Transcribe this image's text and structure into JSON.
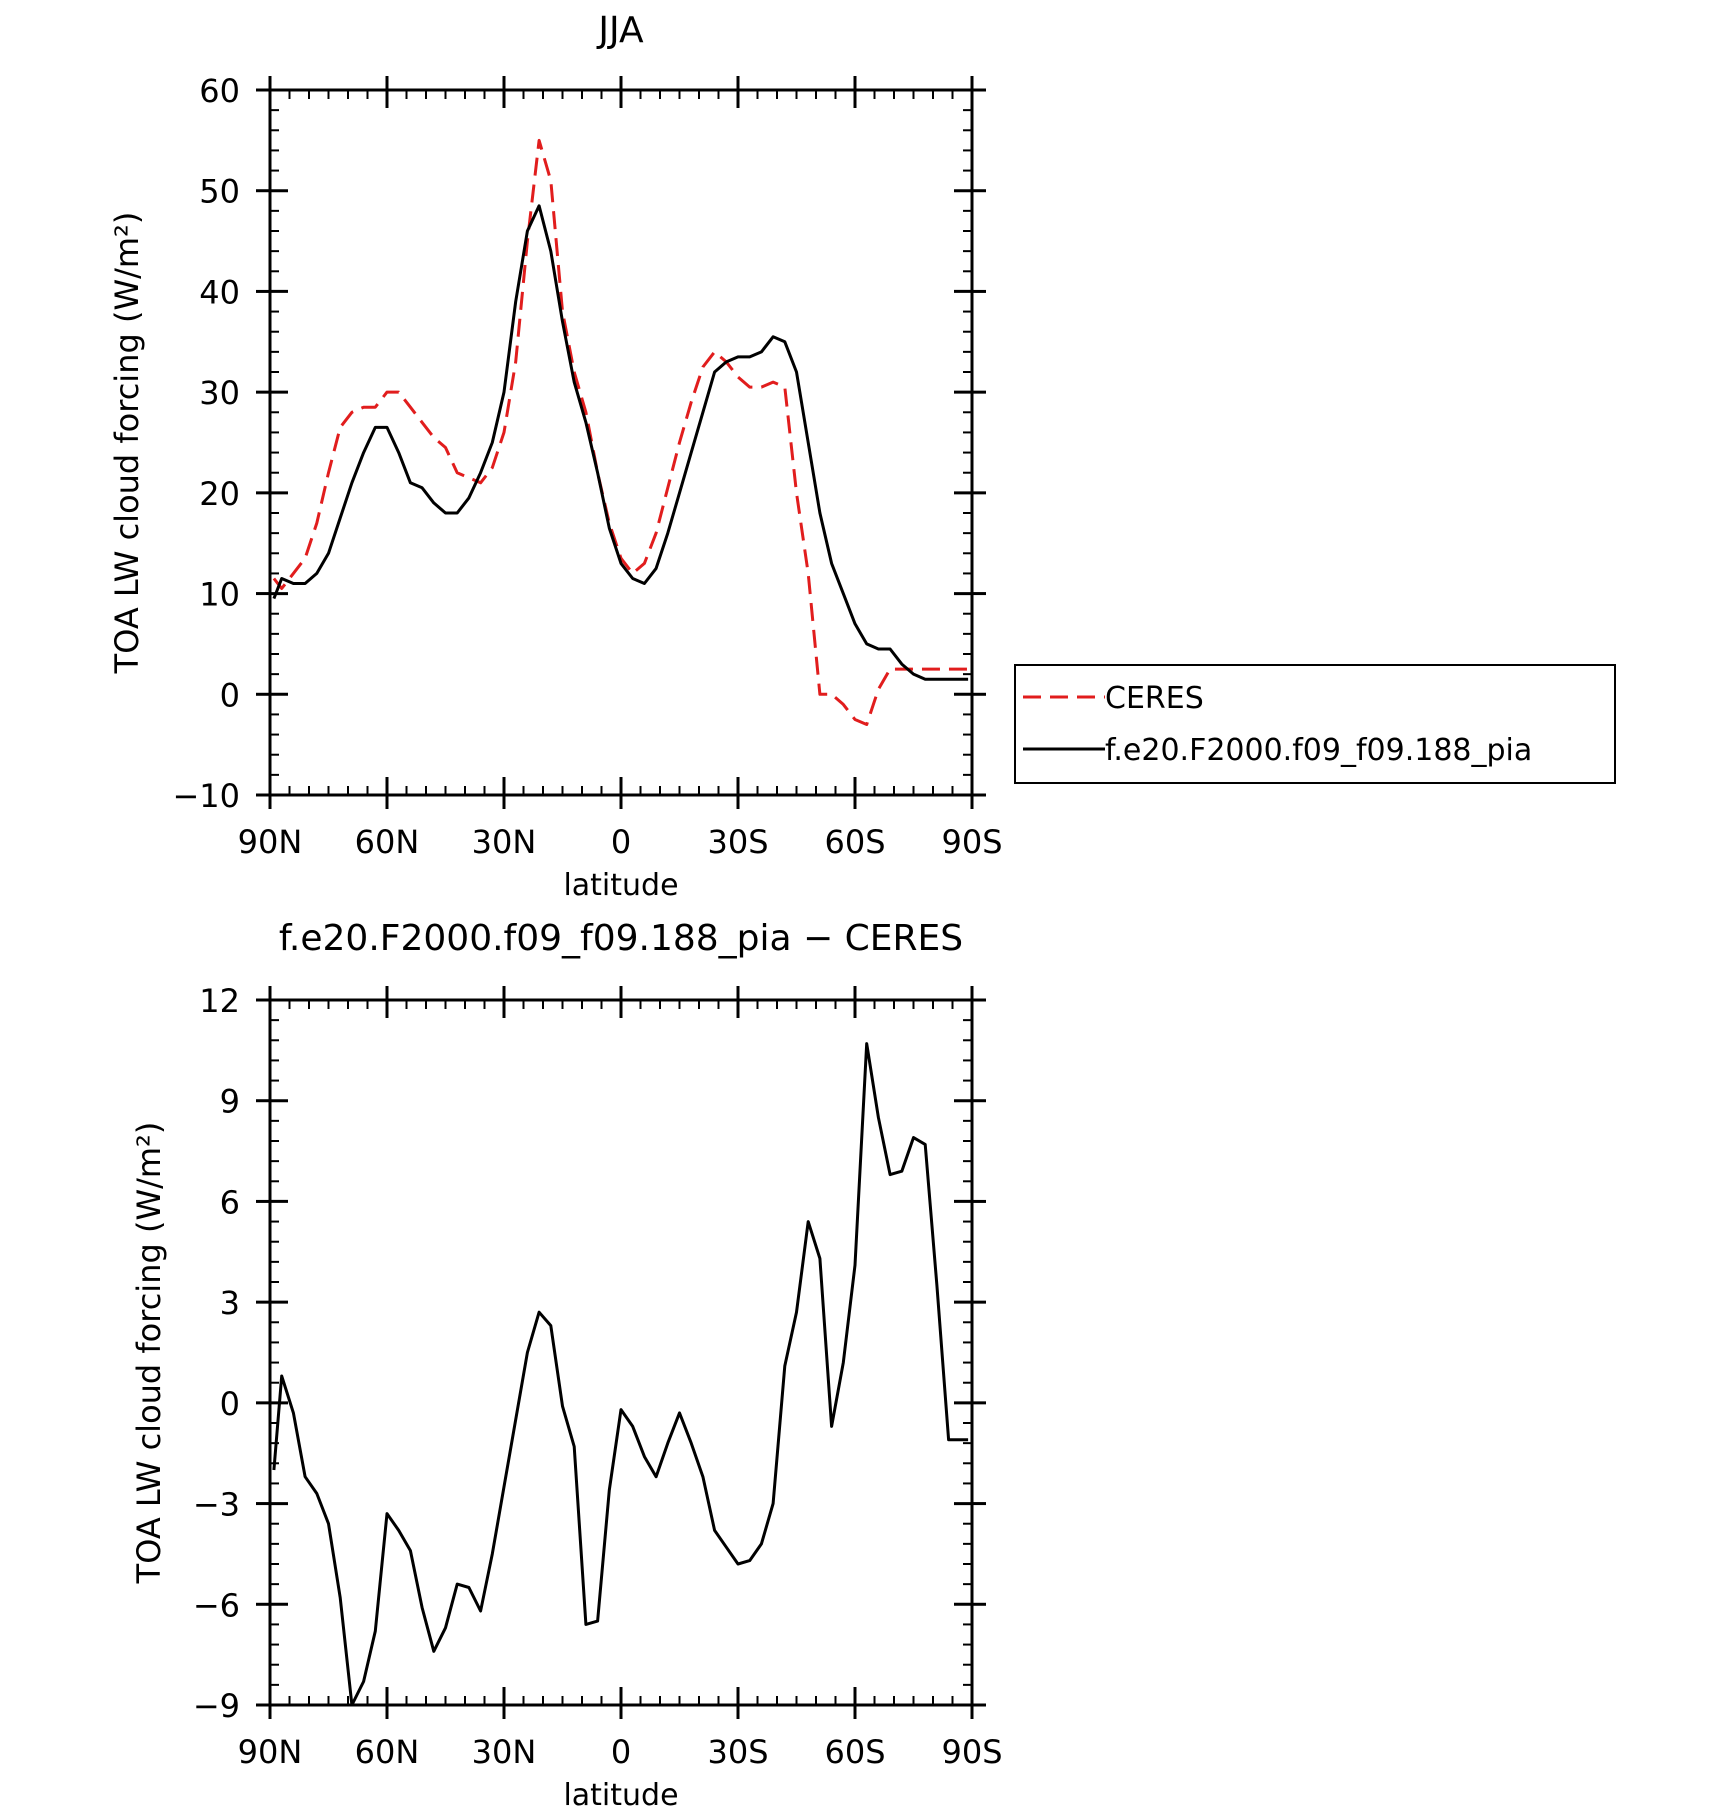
{
  "chart_data": [
    {
      "type": "line",
      "title": "JJA",
      "xlabel": "latitude",
      "ylabel": "TOA LW cloud forcing (W/m²)",
      "xlim": [
        90,
        -90
      ],
      "ylim": [
        -10,
        60
      ],
      "x_ticks": [
        90,
        60,
        30,
        0,
        -30,
        -60,
        -90
      ],
      "x_tick_labels": [
        "90N",
        "60N",
        "30N",
        "0",
        "30S",
        "60S",
        "90S"
      ],
      "y_ticks": [
        -10,
        0,
        10,
        20,
        30,
        40,
        50,
        60
      ],
      "y_tick_labels": [
        "−10",
        "0",
        "10",
        "20",
        "30",
        "40",
        "50",
        "60"
      ],
      "legend": {
        "placement": "outside-right"
      },
      "series": [
        {
          "name": "CERES",
          "color": "#e11d1d",
          "dash": "dashed",
          "x": [
            89,
            87,
            84,
            81,
            78,
            75,
            72,
            69,
            66,
            63,
            60,
            57,
            54,
            51,
            48,
            45,
            42,
            39,
            36,
            33,
            30,
            27,
            24,
            21,
            18,
            15,
            12,
            9,
            6,
            3,
            0,
            -3,
            -6,
            -9,
            -12,
            -15,
            -18,
            -21,
            -24,
            -27,
            -30,
            -33,
            -36,
            -39,
            -42,
            -45,
            -48,
            -51,
            -54,
            -57,
            -60,
            -63,
            -66,
            -69,
            -72,
            -75,
            -78,
            -81,
            -84,
            -87,
            -89
          ],
          "y": [
            11.5,
            10.5,
            12,
            13.5,
            17,
            22,
            26.5,
            28,
            28.5,
            28.5,
            30,
            30,
            28.5,
            27,
            25.5,
            24.5,
            22,
            21.5,
            21,
            22.5,
            26,
            33,
            45,
            55,
            51,
            38,
            32,
            28,
            22,
            17,
            13.5,
            12,
            13,
            16,
            20.5,
            25,
            29,
            32.5,
            34,
            33,
            31.5,
            30.5,
            30.5,
            31,
            30.5,
            20,
            12,
            0,
            0,
            -1,
            -2.5,
            -3,
            0.5,
            2.5,
            2.5,
            2.5,
            2.5,
            2.5,
            2.5,
            2.5,
            2.5
          ]
        },
        {
          "name": "f.e20.F2000.f09_f09.188_pia",
          "color": "#000000",
          "dash": "solid",
          "x": [
            89,
            87,
            84,
            81,
            78,
            75,
            72,
            69,
            66,
            63,
            60,
            57,
            54,
            51,
            48,
            45,
            42,
            39,
            36,
            33,
            30,
            27,
            24,
            21,
            18,
            15,
            12,
            9,
            6,
            3,
            0,
            -3,
            -6,
            -9,
            -12,
            -15,
            -18,
            -21,
            -24,
            -27,
            -30,
            -33,
            -36,
            -39,
            -42,
            -45,
            -48,
            -51,
            -54,
            -57,
            -60,
            -63,
            -66,
            -69,
            -72,
            -75,
            -78,
            -81,
            -84,
            -87,
            -89
          ],
          "y": [
            9.5,
            11.5,
            11,
            11,
            12,
            14,
            17.5,
            21,
            24,
            26.5,
            26.5,
            24,
            21,
            20.5,
            19,
            18,
            18,
            19.5,
            22,
            25,
            30,
            39,
            46,
            48.5,
            44,
            37,
            31,
            27,
            22,
            16.5,
            13,
            11.5,
            11,
            12.5,
            16,
            20,
            24,
            28,
            32,
            33,
            33.5,
            33.5,
            34,
            35.5,
            35,
            32,
            25,
            18,
            13,
            10,
            7,
            5,
            4.5,
            4.5,
            3,
            2,
            1.5,
            1.5,
            1.5,
            1.5,
            1.5
          ]
        }
      ]
    },
    {
      "type": "line",
      "title": "f.e20.F2000.f09_f09.188_pia − CERES",
      "xlabel": "latitude",
      "ylabel": "TOA LW cloud forcing (W/m²)",
      "xlim": [
        90,
        -90
      ],
      "ylim": [
        -9,
        12
      ],
      "x_ticks": [
        90,
        60,
        30,
        0,
        -30,
        -60,
        -90
      ],
      "x_tick_labels": [
        "90N",
        "60N",
        "30N",
        "0",
        "30S",
        "60S",
        "90S"
      ],
      "y_ticks": [
        -9,
        -6,
        -3,
        0,
        3,
        6,
        9,
        12
      ],
      "y_tick_labels": [
        "−9",
        "−6",
        "−3",
        "0",
        "3",
        "6",
        "9",
        "12"
      ],
      "series": [
        {
          "color": "#000000",
          "dash": "solid",
          "x": [
            89,
            87,
            84,
            81,
            78,
            75,
            72,
            69,
            66,
            63,
            60,
            57,
            54,
            51,
            48,
            45,
            42,
            39,
            36,
            33,
            30,
            27,
            24,
            21,
            18,
            15,
            12,
            9,
            6,
            3,
            0,
            -3,
            -6,
            -9,
            -12,
            -15,
            -18,
            -21,
            -24,
            -27,
            -30,
            -33,
            -36,
            -39,
            -42,
            -45,
            -48,
            -51,
            -54,
            -57,
            -60,
            -63,
            -66,
            -69,
            -72,
            -75,
            -78,
            -81,
            -84,
            -87,
            -89
          ],
          "y": [
            -2,
            0.8,
            -0.3,
            -2.2,
            -2.7,
            -3.6,
            -5.8,
            -9,
            -8.3,
            -6.8,
            -3.3,
            -3.8,
            -4.4,
            -6.1,
            -7.4,
            -6.7,
            -5.4,
            -5.5,
            -6.2,
            -4.5,
            -2.5,
            -0.5,
            1.5,
            2.7,
            2.3,
            -0.1,
            -1.3,
            -6.6,
            -6.5,
            -2.6,
            -0.2,
            -0.7,
            -1.6,
            -2.2,
            -1.2,
            -0.3,
            -1.2,
            -2.2,
            -3.8,
            -4.3,
            -4.8,
            -4.7,
            -4.2,
            -3,
            1.1,
            2.7,
            5.4,
            4.3,
            -0.7,
            1.2,
            4.1,
            10.7,
            8.5,
            6.8,
            6.9,
            7.9,
            7.7,
            3.5,
            -1.1,
            -1.1,
            -1.1
          ]
        }
      ]
    }
  ]
}
